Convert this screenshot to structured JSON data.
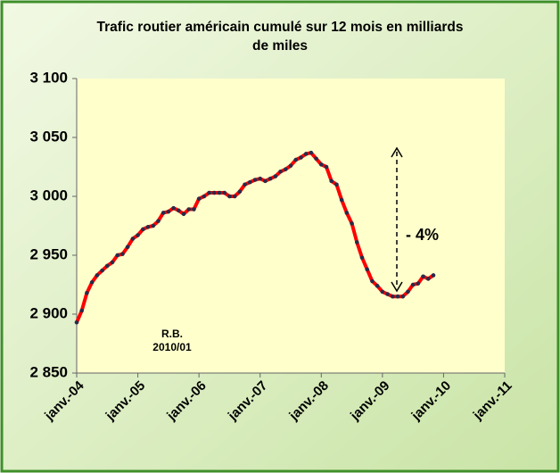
{
  "chart_data": {
    "type": "line",
    "title": "Trafic routier américain cumulé sur 12 mois en milliards de miles",
    "annotations": [
      "- 4%",
      "R.B.",
      "2010/01"
    ],
    "x": [
      "2004-01",
      "2004-02",
      "2004-03",
      "2004-04",
      "2004-05",
      "2004-06",
      "2004-07",
      "2004-08",
      "2004-09",
      "2004-10",
      "2004-11",
      "2004-12",
      "2005-01",
      "2005-02",
      "2005-03",
      "2005-04",
      "2005-05",
      "2005-06",
      "2005-07",
      "2005-08",
      "2005-09",
      "2005-10",
      "2005-11",
      "2005-12",
      "2006-01",
      "2006-02",
      "2006-03",
      "2006-04",
      "2006-05",
      "2006-06",
      "2006-07",
      "2006-08",
      "2006-09",
      "2006-10",
      "2006-11",
      "2006-12",
      "2007-01",
      "2007-02",
      "2007-03",
      "2007-04",
      "2007-05",
      "2007-06",
      "2007-07",
      "2007-08",
      "2007-09",
      "2007-10",
      "2007-11",
      "2007-12",
      "2008-01",
      "2008-02",
      "2008-03",
      "2008-04",
      "2008-05",
      "2008-06",
      "2008-07",
      "2008-08",
      "2008-09",
      "2008-10",
      "2008-11",
      "2008-12",
      "2009-01",
      "2009-02",
      "2009-03",
      "2009-04",
      "2009-05",
      "2009-06",
      "2009-07",
      "2009-08",
      "2009-09",
      "2009-10",
      "2009-11"
    ],
    "series": [
      {
        "color": "#ff0000",
        "marker_color": "#2a2a4a",
        "values": [
          2893,
          2903,
          2918,
          2927,
          2933,
          2937,
          2941,
          2944,
          2950,
          2951,
          2957,
          2964,
          2967,
          2972,
          2974,
          2975,
          2979,
          2986,
          2987,
          2990,
          2988,
          2985,
          2989,
          2989,
          2998,
          3000,
          3003,
          3003,
          3003,
          3003,
          3000,
          3000,
          3004,
          3010,
          3012,
          3014,
          3015,
          3013,
          3015,
          3017,
          3021,
          3023,
          3026,
          3031,
          3033,
          3036,
          3037,
          3032,
          3027,
          3025,
          3013,
          3010,
          2997,
          2986,
          2977,
          2961,
          2948,
          2938,
          2928,
          2924,
          2919,
          2917,
          2915,
          2915,
          2915,
          2919,
          2925,
          2926,
          2932,
          2930,
          2933
        ]
      }
    ],
    "xlim": [
      "2004-01",
      "2011-01"
    ],
    "xticks": [
      {
        "value": "2004-01",
        "label": "janv.-04"
      },
      {
        "value": "2005-01",
        "label": "janv.-05"
      },
      {
        "value": "2006-01",
        "label": "janv.-06"
      },
      {
        "value": "2007-01",
        "label": "janv.-07"
      },
      {
        "value": "2008-01",
        "label": "janv.-08"
      },
      {
        "value": "2009-01",
        "label": "janv.-09"
      },
      {
        "value": "2010-01",
        "label": "janv.-10"
      },
      {
        "value": "2011-01",
        "label": "janv.-11"
      }
    ],
    "ylim": [
      2850,
      3100
    ],
    "yticks": [
      {
        "value": 2850,
        "label": "2 850"
      },
      {
        "value": 2900,
        "label": "2 900"
      },
      {
        "value": 2950,
        "label": "2 950"
      },
      {
        "value": 3000,
        "label": "3 000"
      },
      {
        "value": 3050,
        "label": "3 050"
      },
      {
        "value": 3100,
        "label": "3 100"
      }
    ],
    "grid": false
  }
}
